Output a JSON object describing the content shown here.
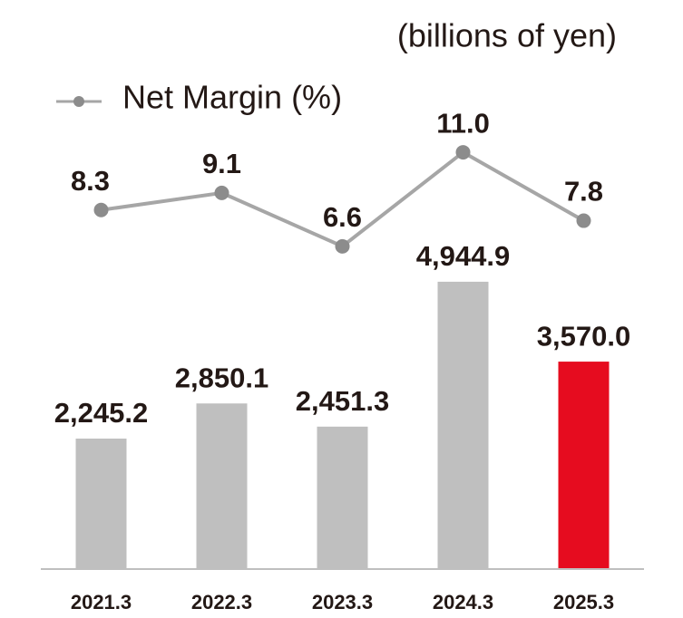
{
  "chart_data": {
    "type": "bar",
    "unit_label": "(billions of yen)",
    "categories": [
      "2021.3",
      "2022.3",
      "2023.3",
      "2024.3",
      "2025.3"
    ],
    "ylim": [
      0,
      8000
    ],
    "y2lim": [
      -8.5,
      13.25
    ],
    "series": [
      {
        "type": "bar",
        "colors": [
          "#bfbfbf",
          "#bfbfbf",
          "#bfbfbf",
          "#bfbfbf",
          "#e60c1f"
        ],
        "values": [
          2245.2,
          2850.1,
          2451.3,
          4944.9,
          3570.0
        ],
        "value_labels": [
          "2,245.2",
          "2,850.1",
          "2,451.3",
          "4,944.9",
          "3,570.0"
        ]
      },
      {
        "type": "line",
        "name": "Net Margin (%)",
        "axis": "y2",
        "color": "#a6a6a6",
        "marker_color": "#8c8c8c",
        "values": [
          8.3,
          9.1,
          6.6,
          11.0,
          7.8
        ],
        "value_labels": [
          "8.3",
          "9.1",
          "6.6",
          "11.0",
          "7.8"
        ]
      }
    ]
  }
}
